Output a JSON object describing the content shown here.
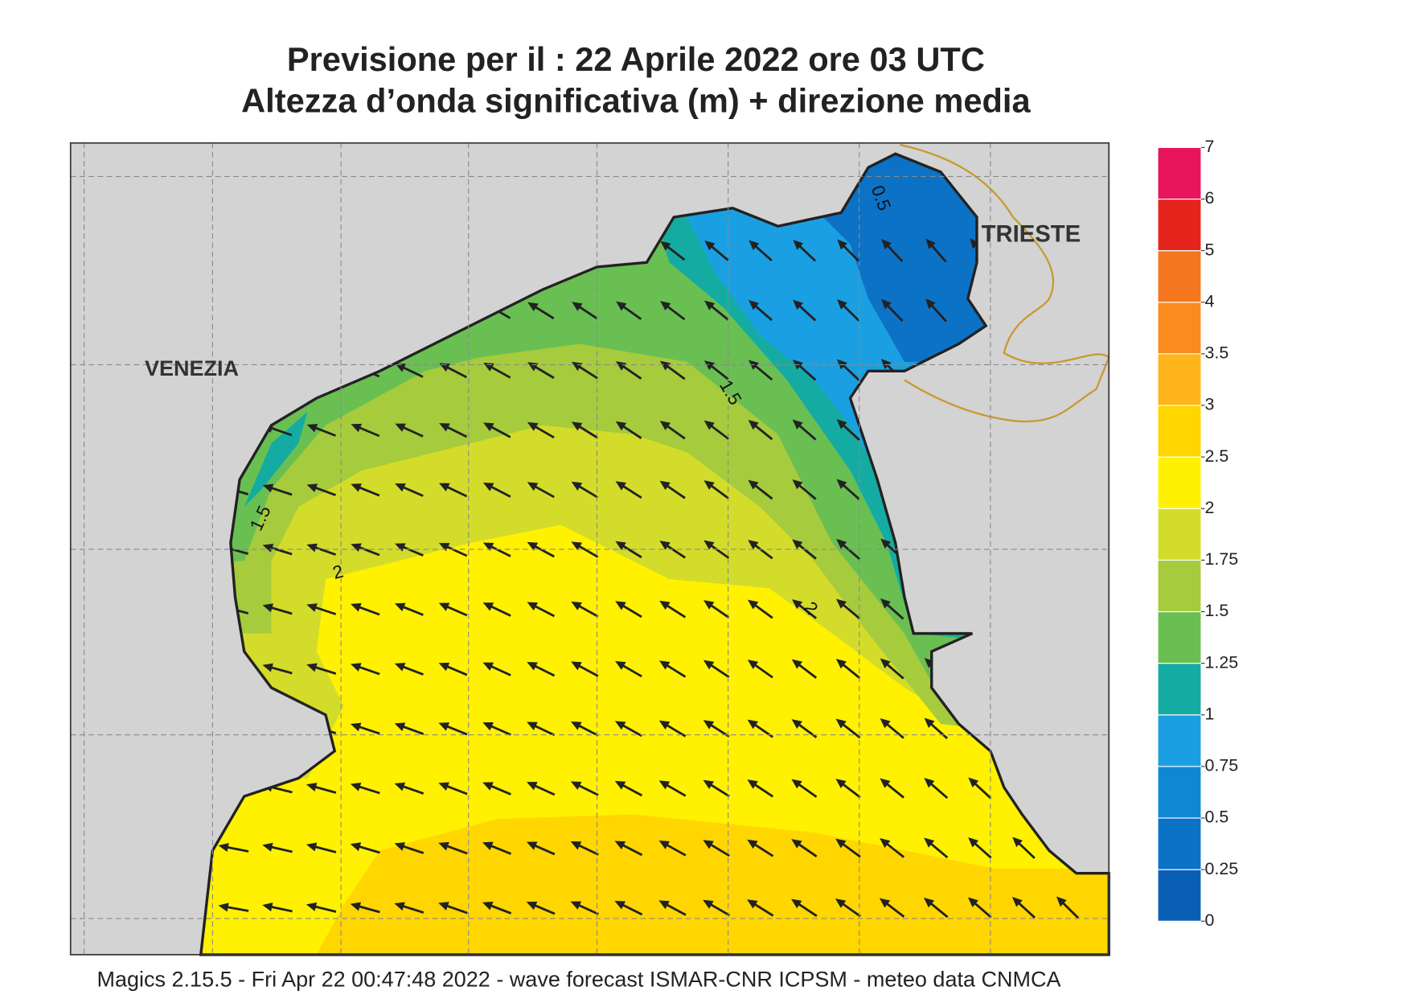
{
  "header": {
    "title": "Previsione per il  :  22   Aprile  2022   ore 03 UTC",
    "subtitle": "Altezza d’onda significativa (m) + direzione media"
  },
  "map": {
    "places": [
      "VENEZIA",
      "TRIESTE"
    ],
    "contour_labels": [
      "0.5",
      "1.5",
      "1.5",
      "2",
      "2"
    ]
  },
  "colorbar": {
    "levels": [
      0,
      0.25,
      0.5,
      0.75,
      1,
      1.25,
      1.5,
      1.75,
      2,
      2.5,
      3,
      3.5,
      4,
      5,
      6,
      7
    ],
    "colors": [
      "#0a5fb4",
      "#0c72c6",
      "#0f88d4",
      "#1aa0e2",
      "#14aca2",
      "#6abf52",
      "#a6cb3c",
      "#d3dc2a",
      "#fff100",
      "#ffd600",
      "#ffb41c",
      "#f98c1c",
      "#f4761e",
      "#e6241e",
      "#e8145c"
    ]
  },
  "footer": "Magics 2.15.5 - Fri Apr 22 00:47:48 2022 - wave forecast  ISMAR-CNR  ICPSM - meteo data   CNMCA"
}
